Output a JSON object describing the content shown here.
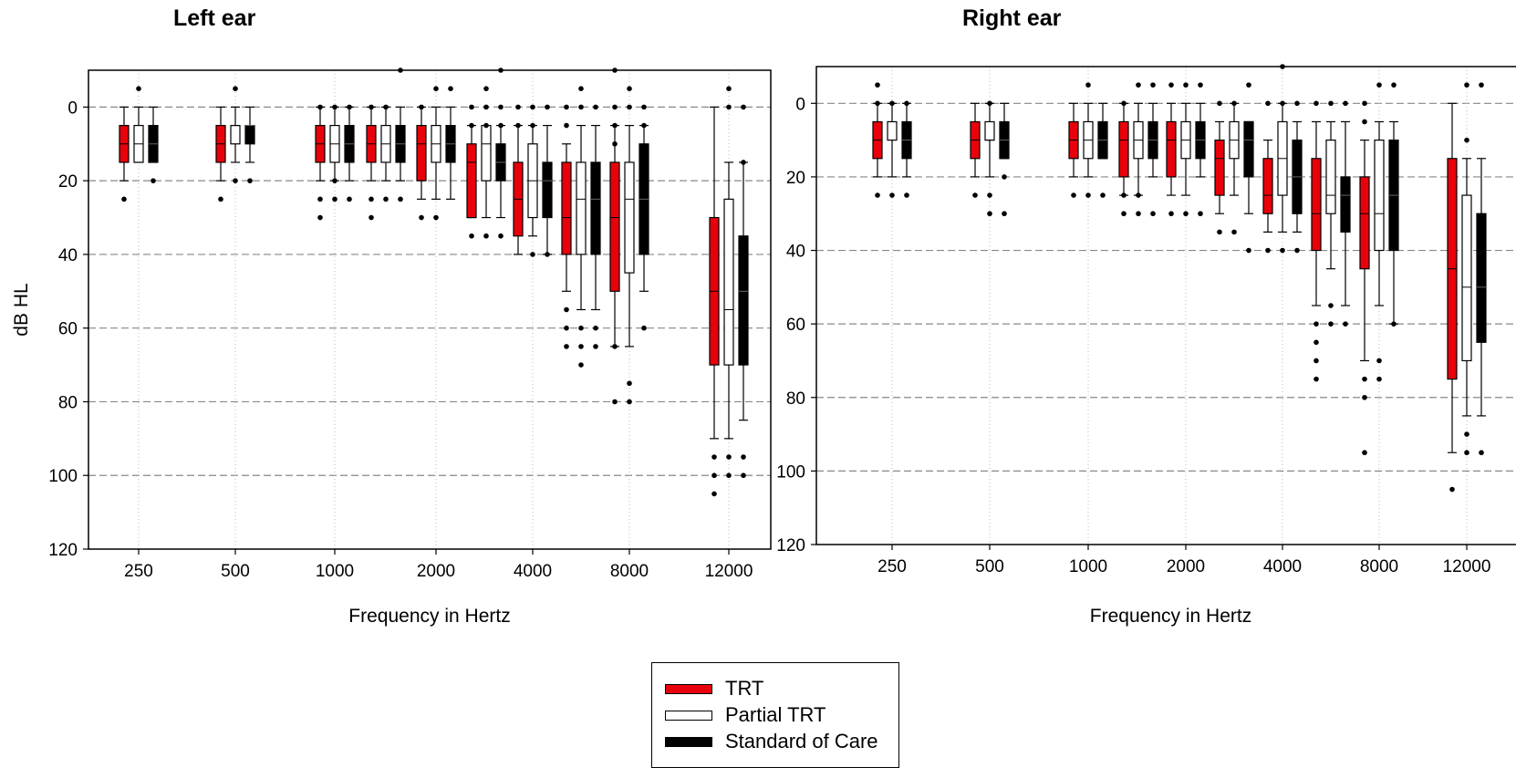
{
  "titles": {
    "left": "Left ear",
    "right": "Right ear"
  },
  "legend": {
    "items": [
      {
        "label": "TRT",
        "fill": "#e8000b",
        "stroke": "#000000"
      },
      {
        "label": "Partial TRT",
        "fill": "#ffffff",
        "stroke": "#000000"
      },
      {
        "label": "Standard of Care",
        "fill": "#000000",
        "stroke": "#000000"
      }
    ]
  },
  "chart_data": [
    {
      "type": "box",
      "title": "Left ear",
      "xlabel": "Frequency in Hertz",
      "ylabel": "dB HL",
      "ylim": [
        120,
        -10
      ],
      "y_inverted": true,
      "y_ticks": [
        0,
        20,
        40,
        60,
        80,
        100,
        120
      ],
      "grid": "dashed horizontal at y ticks, dotted vertical at x ticks",
      "x_ticks": [
        "250",
        "500",
        "1000",
        "2000",
        "4000",
        "8000",
        "12000"
      ],
      "categories": [
        "250",
        "500",
        "1000",
        "1500",
        "2000",
        "3000",
        "4000",
        "6000",
        "8000",
        "12000"
      ],
      "series": [
        {
          "name": "TRT",
          "color": "#e8000b",
          "boxes": [
            {
              "min": 0,
              "q1": 5,
              "median": 10,
              "q3": 15,
              "max": 20,
              "outliers": [
                25
              ]
            },
            {
              "min": 0,
              "q1": 5,
              "median": 10,
              "q3": 15,
              "max": 20,
              "outliers": [
                25
              ]
            },
            {
              "min": 0,
              "q1": 5,
              "median": 10,
              "q3": 15,
              "max": 20,
              "outliers": [
                0,
                25,
                30
              ]
            },
            {
              "min": 0,
              "q1": 5,
              "median": 10,
              "q3": 15,
              "max": 20,
              "outliers": [
                0,
                25,
                30
              ]
            },
            {
              "min": 0,
              "q1": 5,
              "median": 10,
              "q3": 20,
              "max": 25,
              "outliers": [
                0,
                30
              ]
            },
            {
              "min": 5,
              "q1": 10,
              "median": 15,
              "q3": 30,
              "max": 30,
              "outliers": [
                0,
                5,
                35
              ]
            },
            {
              "min": 5,
              "q1": 15,
              "median": 25,
              "q3": 35,
              "max": 40,
              "outliers": [
                0,
                5
              ]
            },
            {
              "min": 10,
              "q1": 15,
              "median": 30,
              "q3": 40,
              "max": 50,
              "outliers": [
                0,
                5,
                55,
                60,
                65
              ]
            },
            {
              "min": 5,
              "q1": 15,
              "median": 30,
              "q3": 50,
              "max": 65,
              "outliers": [
                -10,
                0,
                5,
                10,
                65,
                80
              ]
            },
            {
              "min": 0,
              "q1": 30,
              "median": 50,
              "q3": 70,
              "max": 90,
              "outliers": [
                95,
                100,
                105
              ]
            }
          ]
        },
        {
          "name": "Partial TRT",
          "color": "#ffffff",
          "boxes": [
            {
              "min": 0,
              "q1": 5,
              "median": 10,
              "q3": 15,
              "max": 15,
              "outliers": [
                -5
              ]
            },
            {
              "min": 0,
              "q1": 5,
              "median": 5,
              "q3": 10,
              "max": 15,
              "outliers": [
                -5,
                20
              ]
            },
            {
              "min": 0,
              "q1": 5,
              "median": 10,
              "q3": 15,
              "max": 20,
              "outliers": [
                0,
                20,
                25
              ]
            },
            {
              "min": 0,
              "q1": 5,
              "median": 10,
              "q3": 15,
              "max": 20,
              "outliers": [
                0,
                25
              ]
            },
            {
              "min": 0,
              "q1": 5,
              "median": 10,
              "q3": 15,
              "max": 25,
              "outliers": [
                -5,
                30
              ]
            },
            {
              "min": 5,
              "q1": 5,
              "median": 10,
              "q3": 20,
              "max": 30,
              "outliers": [
                -5,
                0,
                5,
                35
              ]
            },
            {
              "min": 5,
              "q1": 10,
              "median": 20,
              "q3": 30,
              "max": 35,
              "outliers": [
                0,
                5,
                40
              ]
            },
            {
              "min": 5,
              "q1": 15,
              "median": 25,
              "q3": 40,
              "max": 55,
              "outliers": [
                -5,
                0,
                60,
                65,
                70
              ]
            },
            {
              "min": 5,
              "q1": 15,
              "median": 25,
              "q3": 45,
              "max": 65,
              "outliers": [
                -5,
                0,
                75,
                80
              ]
            },
            {
              "min": 15,
              "q1": 25,
              "median": 55,
              "q3": 70,
              "max": 90,
              "outliers": [
                -5,
                0,
                95,
                100
              ]
            }
          ]
        },
        {
          "name": "Standard of Care",
          "color": "#000000",
          "boxes": [
            {
              "min": 0,
              "q1": 5,
              "median": 10,
              "q3": 15,
              "max": 15,
              "outliers": [
                20
              ]
            },
            {
              "min": 0,
              "q1": 5,
              "median": 5,
              "q3": 10,
              "max": 15,
              "outliers": [
                20
              ]
            },
            {
              "min": 0,
              "q1": 5,
              "median": 10,
              "q3": 15,
              "max": 20,
              "outliers": [
                0,
                25
              ]
            },
            {
              "min": 0,
              "q1": 5,
              "median": 10,
              "q3": 15,
              "max": 20,
              "outliers": [
                -10,
                25
              ]
            },
            {
              "min": 0,
              "q1": 5,
              "median": 10,
              "q3": 15,
              "max": 25,
              "outliers": [
                -5
              ]
            },
            {
              "min": 5,
              "q1": 10,
              "median": 15,
              "q3": 20,
              "max": 30,
              "outliers": [
                -10,
                0,
                5,
                35
              ]
            },
            {
              "min": 5,
              "q1": 15,
              "median": 20,
              "q3": 30,
              "max": 40,
              "outliers": [
                0,
                40
              ]
            },
            {
              "min": 5,
              "q1": 15,
              "median": 25,
              "q3": 40,
              "max": 55,
              "outliers": [
                0,
                60,
                65
              ]
            },
            {
              "min": 5,
              "q1": 10,
              "median": 25,
              "q3": 40,
              "max": 50,
              "outliers": [
                0,
                5,
                60
              ]
            },
            {
              "min": 15,
              "q1": 35,
              "median": 50,
              "q3": 70,
              "max": 85,
              "outliers": [
                0,
                15,
                95,
                100
              ]
            }
          ]
        }
      ]
    },
    {
      "type": "box",
      "title": "Right ear",
      "xlabel": "Frequency in Hertz",
      "ylabel": "",
      "ylim": [
        120,
        -10
      ],
      "y_inverted": true,
      "y_ticks": [
        0,
        20,
        40,
        60,
        80,
        100,
        120
      ],
      "grid": "dashed horizontal at y ticks, dotted vertical at x ticks",
      "x_ticks": [
        "250",
        "500",
        "1000",
        "2000",
        "4000",
        "8000",
        "12000"
      ],
      "categories": [
        "250",
        "500",
        "1000",
        "1500",
        "2000",
        "3000",
        "4000",
        "6000",
        "8000",
        "12000"
      ],
      "series": [
        {
          "name": "TRT",
          "color": "#e8000b",
          "boxes": [
            {
              "min": 0,
              "q1": 5,
              "median": 10,
              "q3": 15,
              "max": 20,
              "outliers": [
                -5,
                0,
                25
              ]
            },
            {
              "min": 0,
              "q1": 5,
              "median": 10,
              "q3": 15,
              "max": 20,
              "outliers": [
                25
              ]
            },
            {
              "min": 0,
              "q1": 5,
              "median": 10,
              "q3": 15,
              "max": 20,
              "outliers": [
                25
              ]
            },
            {
              "min": 0,
              "q1": 5,
              "median": 10,
              "q3": 20,
              "max": 25,
              "outliers": [
                0,
                25,
                30
              ]
            },
            {
              "min": 0,
              "q1": 5,
              "median": 10,
              "q3": 20,
              "max": 25,
              "outliers": [
                -5,
                30
              ]
            },
            {
              "min": 5,
              "q1": 10,
              "median": 15,
              "q3": 25,
              "max": 30,
              "outliers": [
                0,
                35
              ]
            },
            {
              "min": 10,
              "q1": 15,
              "median": 25,
              "q3": 30,
              "max": 35,
              "outliers": [
                0,
                40
              ]
            },
            {
              "min": 5,
              "q1": 15,
              "median": 30,
              "q3": 40,
              "max": 55,
              "outliers": [
                0,
                60,
                65,
                70,
                75
              ]
            },
            {
              "min": 10,
              "q1": 20,
              "median": 30,
              "q3": 45,
              "max": 70,
              "outliers": [
                0,
                5,
                75,
                80,
                95
              ]
            },
            {
              "min": 0,
              "q1": 15,
              "median": 45,
              "q3": 75,
              "max": 95,
              "outliers": [
                105
              ]
            }
          ]
        },
        {
          "name": "Partial TRT",
          "color": "#ffffff",
          "boxes": [
            {
              "min": 0,
              "q1": 5,
              "median": 5,
              "q3": 10,
              "max": 20,
              "outliers": [
                0,
                25
              ]
            },
            {
              "min": 0,
              "q1": 5,
              "median": 10,
              "q3": 10,
              "max": 20,
              "outliers": [
                0,
                25,
                30
              ]
            },
            {
              "min": 0,
              "q1": 5,
              "median": 10,
              "q3": 15,
              "max": 20,
              "outliers": [
                -5,
                25
              ]
            },
            {
              "min": 0,
              "q1": 5,
              "median": 10,
              "q3": 15,
              "max": 25,
              "outliers": [
                -5,
                25,
                30
              ]
            },
            {
              "min": 0,
              "q1": 5,
              "median": 10,
              "q3": 15,
              "max": 25,
              "outliers": [
                -5,
                30
              ]
            },
            {
              "min": 0,
              "q1": 5,
              "median": 10,
              "q3": 15,
              "max": 25,
              "outliers": [
                0,
                35
              ]
            },
            {
              "min": 0,
              "q1": 5,
              "median": 15,
              "q3": 25,
              "max": 35,
              "outliers": [
                -10,
                0,
                40
              ]
            },
            {
              "min": 5,
              "q1": 10,
              "median": 25,
              "q3": 30,
              "max": 45,
              "outliers": [
                0,
                55,
                60
              ]
            },
            {
              "min": 5,
              "q1": 10,
              "median": 30,
              "q3": 40,
              "max": 55,
              "outliers": [
                -5,
                70,
                75
              ]
            },
            {
              "min": 15,
              "q1": 25,
              "median": 50,
              "q3": 70,
              "max": 85,
              "outliers": [
                -5,
                10,
                90,
                95
              ]
            }
          ]
        },
        {
          "name": "Standard of Care",
          "color": "#000000",
          "boxes": [
            {
              "min": 0,
              "q1": 5,
              "median": 10,
              "q3": 15,
              "max": 20,
              "outliers": [
                0,
                25
              ]
            },
            {
              "min": 0,
              "q1": 5,
              "median": 10,
              "q3": 15,
              "max": 15,
              "outliers": [
                20,
                30
              ]
            },
            {
              "min": 0,
              "q1": 5,
              "median": 10,
              "q3": 15,
              "max": 15,
              "outliers": [
                25
              ]
            },
            {
              "min": 0,
              "q1": 5,
              "median": 10,
              "q3": 15,
              "max": 20,
              "outliers": [
                -5,
                30
              ]
            },
            {
              "min": 0,
              "q1": 5,
              "median": 10,
              "q3": 15,
              "max": 20,
              "outliers": [
                -5,
                30
              ]
            },
            {
              "min": 5,
              "q1": 5,
              "median": 10,
              "q3": 20,
              "max": 30,
              "outliers": [
                -5,
                40
              ]
            },
            {
              "min": 5,
              "q1": 10,
              "median": 20,
              "q3": 30,
              "max": 35,
              "outliers": [
                0,
                40
              ]
            },
            {
              "min": 5,
              "q1": 20,
              "median": 25,
              "q3": 35,
              "max": 55,
              "outliers": [
                0,
                60
              ]
            },
            {
              "min": 5,
              "q1": 10,
              "median": 25,
              "q3": 40,
              "max": 60,
              "outliers": [
                -5,
                60
              ]
            },
            {
              "min": 15,
              "q1": 30,
              "median": 50,
              "q3": 65,
              "max": 85,
              "outliers": [
                -5,
                95
              ]
            }
          ]
        }
      ]
    }
  ]
}
